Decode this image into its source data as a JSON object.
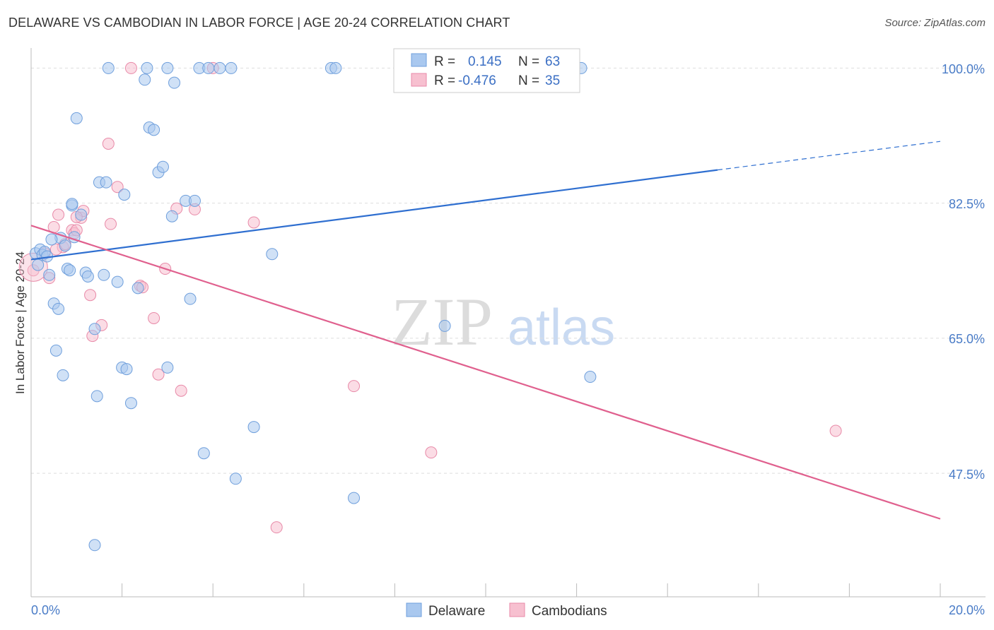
{
  "title": "DELAWARE VS CAMBODIAN IN LABOR FORCE | AGE 20-24 CORRELATION CHART",
  "source": "Source: ZipAtlas.com",
  "watermark": {
    "zip": "ZIP",
    "atlas": "atlas"
  },
  "colors": {
    "blue_fill": "#a9c8ef",
    "blue_stroke": "#6f9fdc",
    "blue_line": "#2f6fd0",
    "pink_fill": "#f7c0d0",
    "pink_stroke": "#e88aa8",
    "pink_line": "#e0608e",
    "grid": "#dddddd",
    "tick_text": "#4a7cc7"
  },
  "legend": {
    "rows": [
      {
        "r_label": "R = ",
        "r_value": "0.145",
        "n_label": "N = ",
        "n_value": "63"
      },
      {
        "r_label": "R = ",
        "r_value": "-0.476",
        "n_label": "N = ",
        "n_value": "35"
      }
    ]
  },
  "bottom_legend": [
    "Delaware",
    "Cambodians"
  ],
  "chart_data": {
    "type": "scatter",
    "title": "DELAWARE VS CAMBODIAN IN LABOR FORCE | AGE 20-24 CORRELATION CHART",
    "xlabel": "",
    "ylabel": "In Labor Force | Age 20-24",
    "xlim": [
      0,
      20
    ],
    "ylim": [
      31.5,
      101.5
    ],
    "x_tick_labels": [
      "0.0%",
      "20.0%"
    ],
    "y_ticks": [
      100,
      82.5,
      65,
      47.5
    ],
    "y_tick_labels": [
      "100.0%",
      "82.5%",
      "65.0%",
      "47.5%"
    ],
    "grid": true,
    "series": [
      {
        "name": "Delaware",
        "r": 0.145,
        "n": 63,
        "trend": {
          "x0": 0,
          "y0": 75.2,
          "x1": 15.1,
          "y1": 86.8,
          "dash_to_x": 20,
          "dash_to_y": 90.5
        },
        "points": [
          [
            0.1,
            76.0
          ],
          [
            0.2,
            76.5
          ],
          [
            0.25,
            75.8
          ],
          [
            0.3,
            76.2
          ],
          [
            0.35,
            75.6
          ],
          [
            0.4,
            73.2
          ],
          [
            0.5,
            69.5
          ],
          [
            0.6,
            68.8
          ],
          [
            0.55,
            63.4
          ],
          [
            0.7,
            60.2
          ],
          [
            0.65,
            78.0
          ],
          [
            0.75,
            77.0
          ],
          [
            0.8,
            74.0
          ],
          [
            0.85,
            73.8
          ],
          [
            0.9,
            82.2
          ],
          [
            0.9,
            82.4
          ],
          [
            1.0,
            93.5
          ],
          [
            1.1,
            81.0
          ],
          [
            1.2,
            73.5
          ],
          [
            1.25,
            73.0
          ],
          [
            1.4,
            66.2
          ],
          [
            1.45,
            57.5
          ],
          [
            1.5,
            85.2
          ],
          [
            1.6,
            73.2
          ],
          [
            1.65,
            85.2
          ],
          [
            1.7,
            100
          ],
          [
            1.9,
            72.3
          ],
          [
            2.0,
            61.2
          ],
          [
            2.1,
            61.0
          ],
          [
            2.05,
            83.6
          ],
          [
            2.2,
            56.6
          ],
          [
            2.35,
            71.5
          ],
          [
            2.5,
            98.5
          ],
          [
            2.6,
            92.3
          ],
          [
            2.7,
            92.0
          ],
          [
            2.8,
            86.5
          ],
          [
            2.9,
            87.2
          ],
          [
            3.0,
            100
          ],
          [
            3.0,
            61.2
          ],
          [
            3.1,
            80.8
          ],
          [
            3.15,
            98.1
          ],
          [
            3.4,
            82.8
          ],
          [
            3.5,
            70.1
          ],
          [
            3.6,
            82.8
          ],
          [
            3.7,
            100
          ],
          [
            3.8,
            50.1
          ],
          [
            3.9,
            100
          ],
          [
            4.4,
            100
          ],
          [
            4.5,
            46.8
          ],
          [
            4.9,
            53.5
          ],
          [
            5.3,
            75.9
          ],
          [
            6.6,
            100
          ],
          [
            6.7,
            100
          ],
          [
            7.1,
            44.3
          ],
          [
            9.1,
            66.6
          ],
          [
            12.1,
            100
          ],
          [
            12.3,
            60.0
          ],
          [
            0.45,
            77.8
          ],
          [
            0.15,
            74.5
          ],
          [
            1.4,
            38.2
          ],
          [
            0.95,
            78.1
          ],
          [
            4.15,
            100
          ],
          [
            2.55,
            100
          ]
        ]
      },
      {
        "name": "Cambodians",
        "r": -0.476,
        "n": 35,
        "trend": {
          "x0": 0,
          "y0": 79.6,
          "x1": 20,
          "y1": 41.6
        },
        "points": [
          [
            0.05,
            73.8
          ],
          [
            0.3,
            76.0
          ],
          [
            0.4,
            72.8
          ],
          [
            0.5,
            79.4
          ],
          [
            0.6,
            81.0
          ],
          [
            0.7,
            76.8
          ],
          [
            0.75,
            77.2
          ],
          [
            0.9,
            79.0
          ],
          [
            0.95,
            78.6
          ],
          [
            1.0,
            79.0
          ],
          [
            1.1,
            80.6
          ],
          [
            1.15,
            81.5
          ],
          [
            1.3,
            70.6
          ],
          [
            1.35,
            65.3
          ],
          [
            1.55,
            66.7
          ],
          [
            1.7,
            90.2
          ],
          [
            1.75,
            79.8
          ],
          [
            1.9,
            84.6
          ],
          [
            2.2,
            100
          ],
          [
            2.4,
            71.8
          ],
          [
            2.45,
            71.6
          ],
          [
            2.7,
            67.6
          ],
          [
            2.8,
            60.3
          ],
          [
            2.95,
            74.0
          ],
          [
            3.2,
            81.8
          ],
          [
            3.3,
            58.2
          ],
          [
            3.6,
            81.7
          ],
          [
            4.0,
            100
          ],
          [
            4.9,
            80.0
          ],
          [
            5.4,
            40.5
          ],
          [
            7.1,
            58.8
          ],
          [
            8.8,
            50.2
          ],
          [
            17.7,
            53.0
          ],
          [
            1.0,
            80.7
          ],
          [
            0.55,
            76.5
          ]
        ]
      }
    ]
  }
}
